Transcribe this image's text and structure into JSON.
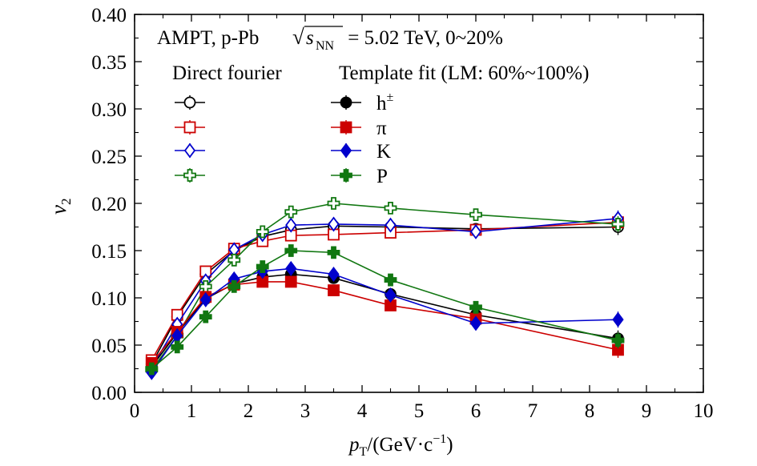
{
  "chart_data": {
    "type": "line",
    "annotation": {
      "prefix": "AMPT, p-Pb ",
      "sqrt": "s",
      "sub": "NN",
      "suffix": " = 5.02 TeV, 0~20%"
    },
    "legend_headers": {
      "left": "Direct fourier",
      "right": "Template fit (LM: 60%~100%)"
    },
    "xlabel": {
      "main": "p",
      "sub": "T",
      "unit": "/(GeV·c",
      "sup": "−1",
      "close": ")"
    },
    "ylabel": {
      "main": "v",
      "sub": "2"
    },
    "xlim": [
      0,
      10
    ],
    "ylim": [
      0,
      0.4
    ],
    "x_ticks": [
      0,
      1,
      2,
      3,
      4,
      5,
      6,
      7,
      8,
      9,
      10
    ],
    "x_tick_labels": [
      "0",
      "1",
      "2",
      "3",
      "4",
      "5",
      "6",
      "7",
      "8",
      "9",
      "10"
    ],
    "y_ticks": [
      0,
      0.05,
      0.1,
      0.15,
      0.2,
      0.25,
      0.3,
      0.35,
      0.4
    ],
    "y_tick_labels": [
      "0.00",
      "0.05",
      "0.10",
      "0.15",
      "0.20",
      "0.25",
      "0.30",
      "0.35",
      "0.40"
    ],
    "x": [
      0.3,
      0.75,
      1.25,
      1.75,
      2.25,
      2.75,
      3.5,
      4.5,
      6.0,
      8.5
    ],
    "series": [
      {
        "particle": "h",
        "particle_sup": "±",
        "method": "direct",
        "marker": "circle",
        "filled": false,
        "color": "#000000",
        "values": [
          0.03,
          0.08,
          0.125,
          0.15,
          0.165,
          0.172,
          0.176,
          0.175,
          0.173,
          0.175
        ]
      },
      {
        "particle": "π",
        "method": "direct",
        "marker": "square",
        "filled": false,
        "color": "#cc0000",
        "values": [
          0.034,
          0.082,
          0.128,
          0.152,
          0.16,
          0.166,
          0.167,
          0.169,
          0.172,
          0.18
        ]
      },
      {
        "particle": "K",
        "method": "direct",
        "marker": "diamond",
        "filled": false,
        "color": "#0000cc",
        "values": [
          0.026,
          0.072,
          0.118,
          0.151,
          0.167,
          0.177,
          0.178,
          0.177,
          0.17,
          0.184
        ]
      },
      {
        "particle": "P",
        "method": "direct",
        "marker": "cross",
        "filled": false,
        "color": "#117711",
        "values": [
          0.024,
          0.06,
          0.112,
          0.14,
          0.17,
          0.191,
          0.2,
          0.195,
          0.188,
          0.178
        ]
      },
      {
        "particle": "h",
        "particle_sup": "±",
        "method": "template",
        "marker": "circle",
        "filled": true,
        "color": "#000000",
        "values": [
          0.027,
          0.063,
          0.099,
          0.115,
          0.122,
          0.125,
          0.121,
          0.104,
          0.082,
          0.057
        ]
      },
      {
        "particle": "π",
        "method": "template",
        "marker": "square",
        "filled": true,
        "color": "#cc0000",
        "values": [
          0.031,
          0.064,
          0.101,
          0.114,
          0.117,
          0.117,
          0.108,
          0.092,
          0.078,
          0.045
        ]
      },
      {
        "particle": "K",
        "method": "template",
        "marker": "diamond",
        "filled": true,
        "color": "#0000cc",
        "values": [
          0.021,
          0.06,
          0.098,
          0.12,
          0.128,
          0.131,
          0.125,
          0.103,
          0.073,
          0.077
        ]
      },
      {
        "particle": "P",
        "method": "template",
        "marker": "cross",
        "filled": true,
        "color": "#117711",
        "values": [
          0.025,
          0.048,
          0.08,
          0.112,
          0.133,
          0.15,
          0.148,
          0.119,
          0.09,
          0.055
        ]
      }
    ]
  }
}
